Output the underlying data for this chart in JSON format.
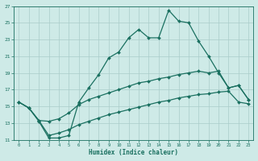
{
  "xlabel": "Humidex (Indice chaleur)",
  "background_color": "#ceeae7",
  "grid_color": "#aaccca",
  "line_color": "#1a7060",
  "xlim": [
    -0.5,
    23.5
  ],
  "ylim": [
    11,
    27
  ],
  "xticks": [
    0,
    1,
    2,
    3,
    4,
    5,
    6,
    7,
    8,
    9,
    10,
    11,
    12,
    13,
    14,
    15,
    16,
    17,
    18,
    19,
    20,
    21,
    22,
    23
  ],
  "yticks": [
    11,
    13,
    15,
    17,
    19,
    21,
    23,
    25,
    27
  ],
  "line1_x": [
    0,
    1,
    2,
    3,
    4,
    5,
    6,
    7,
    8,
    9,
    10,
    11,
    12,
    13,
    14,
    15,
    16,
    17,
    18,
    19,
    20,
    21,
    22,
    23
  ],
  "line1_y": [
    15.5,
    14.8,
    13.2,
    11.2,
    11.2,
    11.5,
    15.5,
    17.2,
    18.8,
    20.8,
    21.5,
    23.2,
    24.2,
    23.2,
    23.2,
    26.5,
    25.2,
    25.0,
    22.8,
    21.0,
    19.0,
    17.2,
    17.5,
    15.8
  ],
  "line2_x": [
    0,
    1,
    2,
    3,
    4,
    5,
    6,
    7,
    8,
    9,
    10,
    11,
    12,
    13,
    14,
    15,
    16,
    17,
    18,
    19,
    20,
    21,
    22,
    23
  ],
  "line2_y": [
    15.5,
    14.8,
    13.3,
    13.2,
    13.5,
    14.2,
    15.2,
    15.8,
    16.2,
    16.6,
    17.0,
    17.4,
    17.8,
    18.0,
    18.3,
    18.5,
    18.8,
    19.0,
    19.2,
    19.0,
    19.2,
    17.2,
    17.5,
    15.8
  ],
  "line3_x": [
    0,
    1,
    2,
    3,
    4,
    5,
    6,
    7,
    8,
    9,
    10,
    11,
    12,
    13,
    14,
    15,
    16,
    17,
    18,
    19,
    20,
    21,
    22,
    23
  ],
  "line3_y": [
    15.5,
    14.8,
    13.3,
    11.5,
    11.8,
    12.2,
    12.8,
    13.2,
    13.6,
    14.0,
    14.3,
    14.6,
    14.9,
    15.2,
    15.5,
    15.7,
    16.0,
    16.2,
    16.4,
    16.5,
    16.7,
    16.8,
    15.5,
    15.3
  ]
}
